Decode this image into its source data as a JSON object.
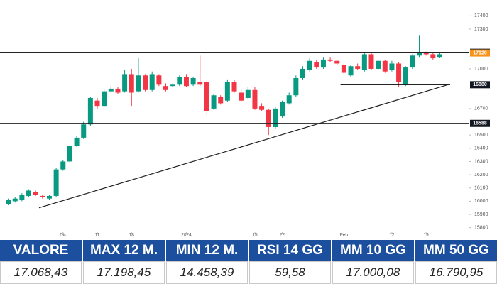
{
  "chart_data": {
    "type": "candlestick",
    "up_color": "#089981",
    "down_color": "#f23645",
    "xlim": [
      -1.2,
      67.2
    ],
    "ylim": [
      15750,
      17520
    ],
    "xticks": [
      {
        "value": 8,
        "label": "Dic"
      },
      {
        "value": 13,
        "label": "11"
      },
      {
        "value": 18,
        "label": "18"
      },
      {
        "value": 26,
        "label": "2024"
      },
      {
        "value": 36,
        "label": "15"
      },
      {
        "value": 40,
        "label": "22"
      },
      {
        "value": 49,
        "label": "Feb"
      },
      {
        "value": 56,
        "label": "12"
      },
      {
        "value": 61,
        "label": "19"
      }
    ],
    "yticks": [
      17400,
      17300,
      17000,
      16700,
      16500,
      16400,
      16300,
      16200,
      16100,
      16000,
      15900,
      15800
    ],
    "open": [
      15980,
      16000,
      16010,
      16040,
      16070,
      16040,
      16020,
      16040,
      16240,
      16300,
      16420,
      16480,
      16580,
      16760,
      16720,
      16830,
      16850,
      16830,
      16960,
      16830,
      16950,
      16840,
      16950,
      16870,
      16870,
      16880,
      16940,
      16880,
      16900,
      16900,
      16700,
      16790,
      16760,
      16900,
      16820,
      16780,
      16840,
      16720,
      16690,
      16560,
      16640,
      16740,
      16800,
      16930,
      16990,
      17050,
      17010,
      17070,
      17060,
      17030,
      16950,
      17020,
      16990,
      17110,
      17000,
      17060,
      16990,
      17040,
      16880,
      17010,
      17100,
      17120,
      17110,
      17090
    ],
    "high": [
      16020,
      16030,
      16060,
      16090,
      16080,
      16050,
      16050,
      16250,
      16310,
      16430,
      16490,
      16600,
      16790,
      16780,
      16840,
      16870,
      16860,
      16990,
      17000,
      17080,
      16960,
      16980,
      16960,
      16890,
      16890,
      16950,
      16960,
      16940,
      17100,
      16920,
      16810,
      16800,
      16920,
      16920,
      16850,
      16860,
      16860,
      16740,
      16700,
      16710,
      16760,
      16820,
      16950,
      17020,
      17080,
      17070,
      17090,
      17090,
      17070,
      17040,
      17030,
      17040,
      17120,
      17120,
      17070,
      17070,
      17060,
      17050,
      17020,
      17110,
      17250,
      17130,
      17120,
      17120
    ],
    "low": [
      15970,
      15990,
      16000,
      16030,
      16040,
      16020,
      16010,
      16030,
      16230,
      16290,
      16410,
      16470,
      16570,
      16700,
      16710,
      16820,
      16810,
      16820,
      16720,
      16820,
      16830,
      16830,
      16870,
      16830,
      16860,
      16870,
      16860,
      16870,
      16870,
      16650,
      16690,
      16730,
      16750,
      16820,
      16750,
      16770,
      16690,
      16680,
      16500,
      16550,
      16630,
      16730,
      16790,
      16920,
      16980,
      17000,
      17000,
      17050,
      17030,
      16960,
      16940,
      16990,
      16980,
      16990,
      16990,
      16970,
      16980,
      16860,
      16870,
      17000,
      17090,
      17100,
      17070,
      17080
    ],
    "close": [
      16010,
      16020,
      16050,
      16080,
      16050,
      16030,
      16040,
      16240,
      16300,
      16420,
      16480,
      16580,
      16780,
      16720,
      16830,
      16850,
      16820,
      16960,
      16820,
      16950,
      16840,
      16960,
      16880,
      16840,
      16880,
      16940,
      16870,
      16930,
      16880,
      16680,
      16800,
      16740,
      16900,
      16830,
      16760,
      16840,
      16700,
      16690,
      16560,
      16700,
      16750,
      16800,
      16930,
      17000,
      17060,
      17010,
      17070,
      17060,
      17040,
      16970,
      17020,
      17000,
      17110,
      17000,
      17060,
      16980,
      17040,
      16900,
      17010,
      17100,
      17120,
      17110,
      17080,
      17110
    ],
    "levels": [
      {
        "value": 17125
      },
      {
        "value": 16588
      },
      {
        "value": 16880,
        "from": 48.5,
        "to": 64.5
      }
    ],
    "trendline": {
      "x": [
        4.5,
        64.5
      ],
      "y": [
        15950,
        16885
      ]
    },
    "price_labels": [
      {
        "value": 17125,
        "color": "#131722"
      },
      {
        "value": 17120,
        "color": "#f7931a"
      },
      {
        "value": 16880,
        "color": "#131722"
      },
      {
        "value": 16588,
        "color": "#131722"
      }
    ]
  },
  "table": {
    "headers": [
      "VALORE",
      "MAX 12 M.",
      "MIN 12 M.",
      "RSI 14 GG",
      "MM 10 GG",
      "MM 50 GG"
    ],
    "values": [
      "17.068,43",
      "17.198,45",
      "14.458,39",
      "59,58",
      "17.000,08",
      "16.790,95"
    ]
  }
}
